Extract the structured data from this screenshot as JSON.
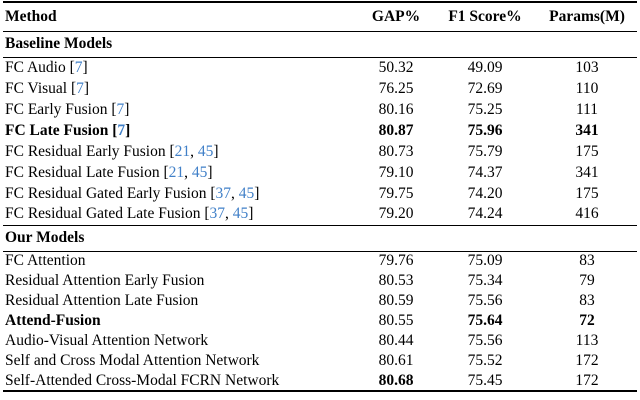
{
  "table": {
    "columns": [
      "Method",
      "GAP%",
      "F1 Score%",
      "Params(M)"
    ],
    "citation_color": "#4180c8",
    "sections": [
      {
        "title": "Baseline Models",
        "rows": [
          {
            "method": "FC Audio",
            "cites": [
              "7"
            ],
            "gap": "50.32",
            "f1": "49.09",
            "params": "103",
            "bold": []
          },
          {
            "method": "FC Visual",
            "cites": [
              "7"
            ],
            "gap": "76.25",
            "f1": "72.69",
            "params": "110",
            "bold": []
          },
          {
            "method": "FC Early Fusion",
            "cites": [
              "7"
            ],
            "gap": "80.16",
            "f1": "75.25",
            "params": "111",
            "bold": []
          },
          {
            "method": "FC Late Fusion",
            "cites": [
              "7"
            ],
            "gap": "80.87",
            "f1": "75.96",
            "params": "341",
            "bold": [
              "method",
              "gap",
              "f1",
              "params"
            ]
          },
          {
            "method": "FC Residual Early Fusion",
            "cites": [
              "21",
              "45"
            ],
            "gap": "80.73",
            "f1": "75.79",
            "params": "175",
            "bold": []
          },
          {
            "method": "FC Residual Late Fusion",
            "cites": [
              "21",
              "45"
            ],
            "gap": "79.10",
            "f1": "74.37",
            "params": "341",
            "bold": []
          },
          {
            "method": "FC Residual Gated Early Fusion",
            "cites": [
              "37",
              "45"
            ],
            "gap": "79.75",
            "f1": "74.20",
            "params": "175",
            "bold": []
          },
          {
            "method": "FC Residual Gated Late Fusion",
            "cites": [
              "37",
              "45"
            ],
            "gap": "79.20",
            "f1": "74.24",
            "params": "416",
            "bold": []
          }
        ]
      },
      {
        "title": "Our Models",
        "rows": [
          {
            "method": "FC Attention",
            "cites": [],
            "gap": "79.76",
            "f1": "75.09",
            "params": "83",
            "bold": []
          },
          {
            "method": "Residual Attention Early Fusion",
            "cites": [],
            "gap": "80.53",
            "f1": "75.34",
            "params": "79",
            "bold": []
          },
          {
            "method": "Residual Attention Late Fusion",
            "cites": [],
            "gap": "80.59",
            "f1": "75.56",
            "params": "83",
            "bold": []
          },
          {
            "method": "Attend-Fusion",
            "cites": [],
            "gap": "80.55",
            "f1": "75.64",
            "params": "72",
            "bold": [
              "method",
              "f1",
              "params"
            ]
          },
          {
            "method": "Audio-Visual Attention Network",
            "cites": [],
            "gap": "80.44",
            "f1": "75.56",
            "params": "113",
            "bold": []
          },
          {
            "method": "Self and Cross Modal Attention Network",
            "cites": [],
            "gap": "80.61",
            "f1": "75.52",
            "params": "172",
            "bold": []
          },
          {
            "method": "Self-Attended Cross-Modal FCRN Network",
            "cites": [],
            "gap": "80.68",
            "f1": "75.45",
            "params": "172",
            "bold": [
              "gap"
            ]
          }
        ]
      }
    ]
  }
}
